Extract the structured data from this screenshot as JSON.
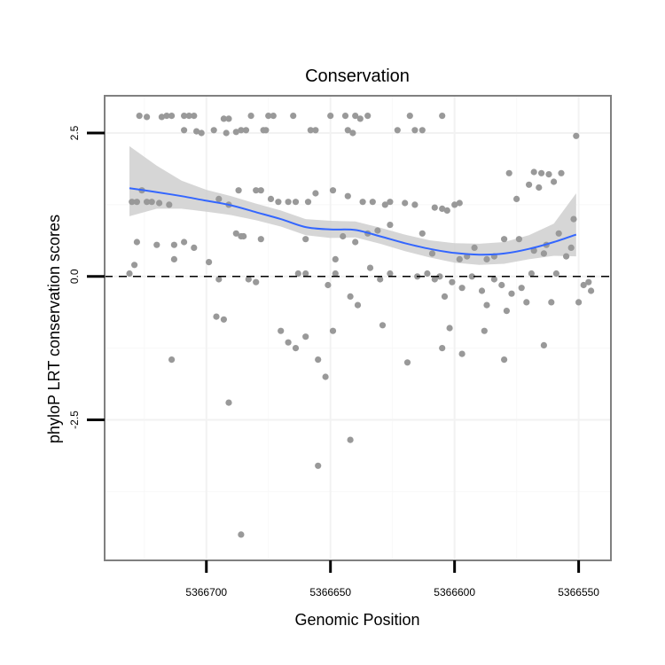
{
  "chart_data": {
    "type": "scatter",
    "title": "Conservation",
    "xlabel": "Genomic Position",
    "ylabel": "phyloP LRT conservation scores",
    "x_reversed": true,
    "xlim": [
      5366741,
      5366537
    ],
    "ylim": [
      -4.95,
      3.15
    ],
    "x_ticks": [
      5366700,
      5366650,
      5366600,
      5366550
    ],
    "x_tick_labels": [
      "5366700",
      "5366650",
      "5366600",
      "5366550"
    ],
    "y_ticks": [
      -2.5,
      0.0,
      2.5
    ],
    "y_tick_labels": [
      "-2.5",
      "0.0",
      "2.5"
    ],
    "reference_line": {
      "y": 0,
      "style": "dashed"
    },
    "points": [
      [
        5366727,
        2.8
      ],
      [
        5366724,
        2.78
      ],
      [
        5366718,
        2.78
      ],
      [
        5366716,
        2.8
      ],
      [
        5366714,
        2.8
      ],
      [
        5366709,
        2.8
      ],
      [
        5366707,
        2.8
      ],
      [
        5366705,
        2.8
      ],
      [
        5366709,
        2.55
      ],
      [
        5366704,
        2.53
      ],
      [
        5366702,
        2.5
      ],
      [
        5366697,
        2.55
      ],
      [
        5366693,
        2.75
      ],
      [
        5366691,
        2.75
      ],
      [
        5366692,
        2.5
      ],
      [
        5366688,
        2.52
      ],
      [
        5366686,
        2.55
      ],
      [
        5366684,
        2.55
      ],
      [
        5366682,
        2.8
      ],
      [
        5366675,
        2.8
      ],
      [
        5366673,
        2.8
      ],
      [
        5366677,
        2.55
      ],
      [
        5366676,
        2.55
      ],
      [
        5366665,
        2.8
      ],
      [
        5366658,
        2.55
      ],
      [
        5366656,
        2.55
      ],
      [
        5366650,
        2.8
      ],
      [
        5366644,
        2.8
      ],
      [
        5366643,
        2.55
      ],
      [
        5366640,
        2.8
      ],
      [
        5366638,
        2.75
      ],
      [
        5366641,
        2.5
      ],
      [
        5366635,
        2.8
      ],
      [
        5366623,
        2.55
      ],
      [
        5366618,
        2.8
      ],
      [
        5366616,
        2.55
      ],
      [
        5366613,
        2.55
      ],
      [
        5366605,
        2.8
      ],
      [
        5366551,
        2.45
      ],
      [
        5366730,
        1.3
      ],
      [
        5366728,
        1.3
      ],
      [
        5366726,
        1.5
      ],
      [
        5366724,
        1.3
      ],
      [
        5366722,
        1.3
      ],
      [
        5366719,
        1.28
      ],
      [
        5366715,
        1.25
      ],
      [
        5366695,
        1.35
      ],
      [
        5366691,
        1.25
      ],
      [
        5366687,
        1.5
      ],
      [
        5366680,
        1.5
      ],
      [
        5366678,
        1.5
      ],
      [
        5366674,
        1.35
      ],
      [
        5366671,
        1.3
      ],
      [
        5366667,
        1.3
      ],
      [
        5366664,
        1.3
      ],
      [
        5366659,
        1.3
      ],
      [
        5366656,
        1.45
      ],
      [
        5366649,
        1.5
      ],
      [
        5366643,
        1.4
      ],
      [
        5366637,
        1.3
      ],
      [
        5366633,
        1.3
      ],
      [
        5366628,
        1.25
      ],
      [
        5366626,
        1.3
      ],
      [
        5366620,
        1.28
      ],
      [
        5366616,
        1.25
      ],
      [
        5366608,
        1.2
      ],
      [
        5366605,
        1.18
      ],
      [
        5366603,
        1.15
      ],
      [
        5366600,
        1.25
      ],
      [
        5366598,
        1.28
      ],
      [
        5366578,
        1.8
      ],
      [
        5366568,
        1.82
      ],
      [
        5366565,
        1.8
      ],
      [
        5366562,
        1.78
      ],
      [
        5366557,
        1.8
      ],
      [
        5366575,
        1.35
      ],
      [
        5366570,
        1.6
      ],
      [
        5366566,
        1.55
      ],
      [
        5366560,
        1.65
      ],
      [
        5366552,
        1.0
      ],
      [
        5366558,
        0.75
      ],
      [
        5366563,
        0.55
      ],
      [
        5366728,
        0.6
      ],
      [
        5366713,
        0.55
      ],
      [
        5366709,
        0.6
      ],
      [
        5366688,
        0.75
      ],
      [
        5366686,
        0.7
      ],
      [
        5366705,
        0.5
      ],
      [
        5366720,
        0.55
      ],
      [
        5366685,
        0.7
      ],
      [
        5366678,
        0.65
      ],
      [
        5366660,
        0.65
      ],
      [
        5366648,
        0.3
      ],
      [
        5366645,
        0.7
      ],
      [
        5366640,
        0.6
      ],
      [
        5366635,
        0.75
      ],
      [
        5366631,
        0.8
      ],
      [
        5366626,
        0.9
      ],
      [
        5366613,
        0.75
      ],
      [
        5366609,
        0.4
      ],
      [
        5366598,
        0.3
      ],
      [
        5366595,
        0.35
      ],
      [
        5366592,
        0.5
      ],
      [
        5366587,
        0.3
      ],
      [
        5366584,
        0.35
      ],
      [
        5366580,
        0.65
      ],
      [
        5366574,
        0.65
      ],
      [
        5366568,
        0.45
      ],
      [
        5366564,
        0.4
      ],
      [
        5366555,
        0.35
      ],
      [
        5366553,
        0.5
      ],
      [
        5366731,
        0.05
      ],
      [
        5366729,
        0.2
      ],
      [
        5366713,
        0.3
      ],
      [
        5366699,
        0.25
      ],
      [
        5366695,
        -0.05
      ],
      [
        5366683,
        -0.05
      ],
      [
        5366680,
        -0.1
      ],
      [
        5366663,
        0.05
      ],
      [
        5366660,
        0.05
      ],
      [
        5366651,
        -0.15
      ],
      [
        5366648,
        0.05
      ],
      [
        5366642,
        -0.35
      ],
      [
        5366639,
        -0.5
      ],
      [
        5366634,
        0.15
      ],
      [
        5366630,
        -0.05
      ],
      [
        5366626,
        0.05
      ],
      [
        5366615,
        0.0
      ],
      [
        5366611,
        0.05
      ],
      [
        5366608,
        -0.05
      ],
      [
        5366606,
        0.0
      ],
      [
        5366604,
        -0.35
      ],
      [
        5366601,
        -0.1
      ],
      [
        5366597,
        -0.2
      ],
      [
        5366593,
        0.0
      ],
      [
        5366589,
        -0.25
      ],
      [
        5366587,
        -0.5
      ],
      [
        5366584,
        -0.05
      ],
      [
        5366581,
        -0.15
      ],
      [
        5366579,
        -0.6
      ],
      [
        5366577,
        -0.3
      ],
      [
        5366573,
        -0.2
      ],
      [
        5366571,
        -0.45
      ],
      [
        5366569,
        0.05
      ],
      [
        5366561,
        -0.45
      ],
      [
        5366559,
        0.05
      ],
      [
        5366550,
        -0.45
      ],
      [
        5366548,
        -0.15
      ],
      [
        5366545,
        -0.25
      ],
      [
        5366546,
        -0.1
      ],
      [
        5366696,
        -0.7
      ],
      [
        5366693,
        -0.75
      ],
      [
        5366670,
        -0.95
      ],
      [
        5366667,
        -1.15
      ],
      [
        5366664,
        -1.25
      ],
      [
        5366660,
        -1.05
      ],
      [
        5366649,
        -0.95
      ],
      [
        5366629,
        -0.85
      ],
      [
        5366602,
        -0.9
      ],
      [
        5366588,
        -0.95
      ],
      [
        5366619,
        -1.5
      ],
      [
        5366597,
        -1.35
      ],
      [
        5366605,
        -1.25
      ],
      [
        5366580,
        -1.45
      ],
      [
        5366564,
        -1.2
      ],
      [
        5366714,
        -1.45
      ],
      [
        5366655,
        -1.45
      ],
      [
        5366652,
        -1.75
      ],
      [
        5366691,
        -2.2
      ],
      [
        5366642,
        -2.85
      ],
      [
        5366655,
        -3.3
      ],
      [
        5366686,
        -4.5
      ]
    ],
    "smooth": {
      "x": [
        5366731,
        5366720,
        5366710,
        5366700,
        5366690,
        5366680,
        5366670,
        5366660,
        5366650,
        5366640,
        5366630,
        5366620,
        5366610,
        5366600,
        5366590,
        5366580,
        5366570,
        5366560,
        5366551
      ],
      "y": [
        1.54,
        1.47,
        1.4,
        1.32,
        1.24,
        1.12,
        1.0,
        0.86,
        0.82,
        0.81,
        0.7,
        0.58,
        0.48,
        0.41,
        0.38,
        0.4,
        0.48,
        0.6,
        0.73
      ],
      "lower": [
        1.05,
        1.18,
        1.18,
        1.13,
        1.07,
        0.98,
        0.87,
        0.72,
        0.67,
        0.68,
        0.57,
        0.44,
        0.33,
        0.24,
        0.2,
        0.22,
        0.3,
        0.36,
        0.35
      ],
      "upper": [
        2.27,
        1.93,
        1.67,
        1.51,
        1.4,
        1.27,
        1.15,
        1.0,
        0.97,
        0.96,
        0.85,
        0.73,
        0.63,
        0.58,
        0.57,
        0.6,
        0.72,
        0.92,
        1.45
      ]
    }
  }
}
